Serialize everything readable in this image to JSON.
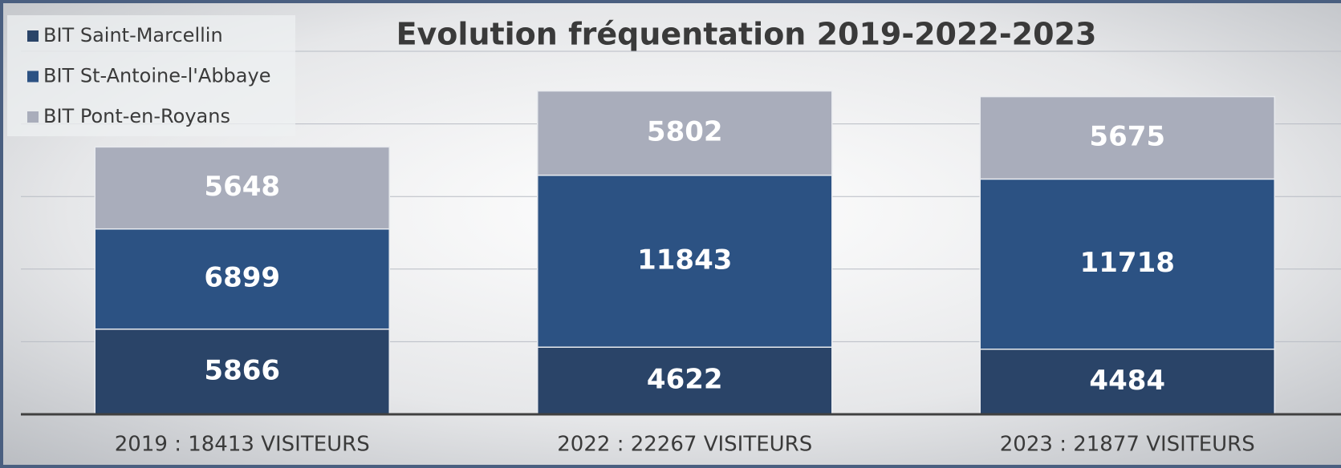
{
  "chart_data": {
    "type": "stacked_bar",
    "title": "Evolution fréquentation 2019-2022-2023",
    "categories": [
      "2019 : 18413 VISITEURS",
      "2022 : 22267 VISITEURS",
      "2023 : 21877 VISITEURS"
    ],
    "series": [
      {
        "name": "BIT Saint-Marcellin",
        "color": "#2a4468",
        "values": [
          5866,
          4622,
          4484
        ]
      },
      {
        "name": "BIT St-Antoine-l'Abbaye",
        "color": "#2c5283",
        "values": [
          6899,
          11843,
          11718
        ]
      },
      {
        "name": "BIT Pont-en-Royans",
        "color": "#a9adbb",
        "values": [
          5648,
          5802,
          5675
        ]
      }
    ],
    "ylim": [
      0,
      25000
    ],
    "yticks": [
      0,
      5000,
      10000,
      15000,
      20000,
      25000
    ],
    "grid": true,
    "legend": "top-left"
  }
}
